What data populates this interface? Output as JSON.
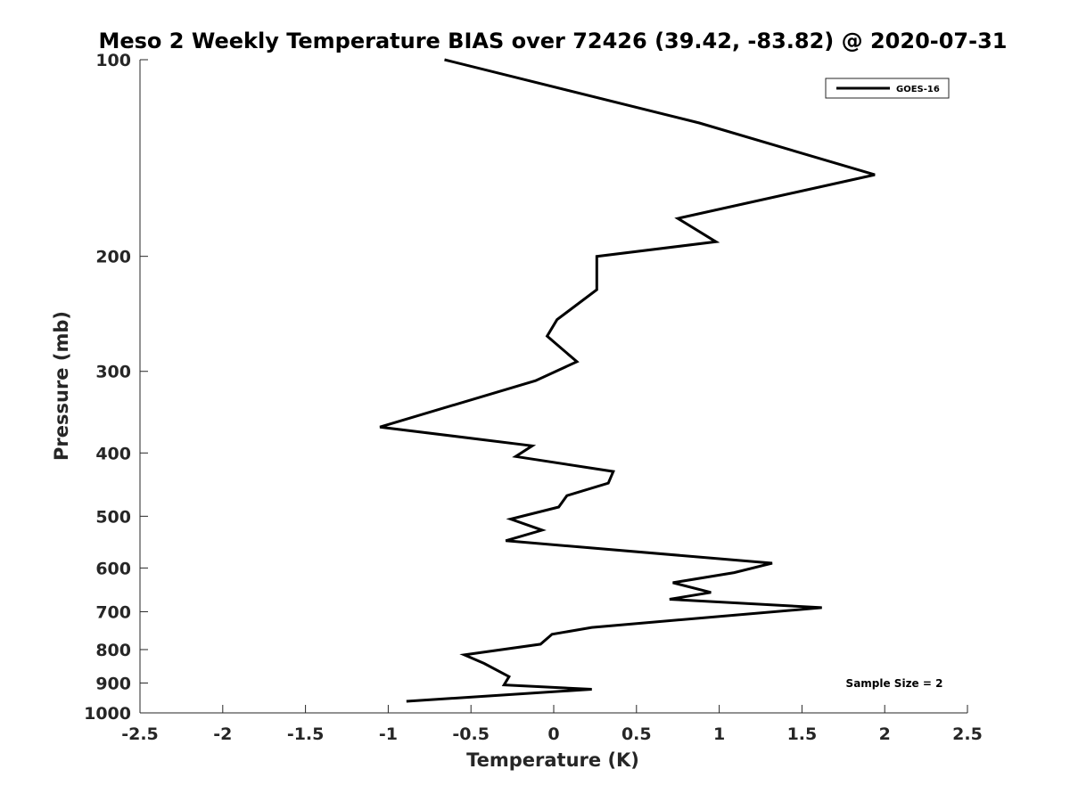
{
  "chart_data": {
    "type": "line",
    "title": "Meso 2 Weekly Temperature BIAS over 72426 (39.42, -83.82) @ 2020-07-31",
    "xlabel": "Temperature (K)",
    "ylabel": "Pressure (mb)",
    "xlim": [
      -2.5,
      2.5
    ],
    "ylim": [
      100,
      1000
    ],
    "y_scale": "log",
    "y_reversed": true,
    "x_ticks": [
      -2.5,
      -2,
      -1.5,
      -1,
      -0.5,
      0,
      0.5,
      1,
      1.5,
      2,
      2.5
    ],
    "x_tick_labels": [
      "-2.5",
      "-2",
      "-1.5",
      "-1",
      "-0.5",
      "0",
      "0.5",
      "1",
      "1.5",
      "2",
      "2.5"
    ],
    "y_ticks": [
      100,
      200,
      300,
      400,
      500,
      600,
      700,
      800,
      900,
      1000
    ],
    "y_tick_labels": [
      "100",
      "200",
      "300",
      "400",
      "500",
      "600",
      "700",
      "800",
      "900",
      "1000"
    ],
    "grid": false,
    "legend_position": "top-right",
    "annotation": "Sample Size = 2",
    "series": [
      {
        "name": "GOES-16",
        "color": "#000000",
        "points": [
          {
            "x": -0.66,
            "y": 100
          },
          {
            "x": 0.88,
            "y": 125
          },
          {
            "x": 1.94,
            "y": 150
          },
          {
            "x": 0.75,
            "y": 175
          },
          {
            "x": 0.98,
            "y": 190
          },
          {
            "x": 0.26,
            "y": 200
          },
          {
            "x": 0.26,
            "y": 225
          },
          {
            "x": 0.02,
            "y": 250
          },
          {
            "x": -0.04,
            "y": 265
          },
          {
            "x": 0.14,
            "y": 290
          },
          {
            "x": -0.11,
            "y": 310
          },
          {
            "x": -1.05,
            "y": 365
          },
          {
            "x": -0.13,
            "y": 390
          },
          {
            "x": -0.23,
            "y": 405
          },
          {
            "x": 0.36,
            "y": 427
          },
          {
            "x": 0.33,
            "y": 445
          },
          {
            "x": 0.08,
            "y": 465
          },
          {
            "x": 0.03,
            "y": 484
          },
          {
            "x": -0.26,
            "y": 505
          },
          {
            "x": -0.07,
            "y": 525
          },
          {
            "x": -0.29,
            "y": 545
          },
          {
            "x": 1.32,
            "y": 590
          },
          {
            "x": 1.09,
            "y": 610
          },
          {
            "x": 0.72,
            "y": 632
          },
          {
            "x": 0.95,
            "y": 654
          },
          {
            "x": 0.7,
            "y": 670
          },
          {
            "x": 1.62,
            "y": 690
          },
          {
            "x": 0.23,
            "y": 740
          },
          {
            "x": -0.01,
            "y": 758
          },
          {
            "x": -0.08,
            "y": 785
          },
          {
            "x": -0.54,
            "y": 815
          },
          {
            "x": -0.42,
            "y": 840
          },
          {
            "x": -0.27,
            "y": 880
          },
          {
            "x": -0.3,
            "y": 906
          },
          {
            "x": 0.23,
            "y": 920
          },
          {
            "x": -0.89,
            "y": 960
          }
        ]
      }
    ]
  }
}
